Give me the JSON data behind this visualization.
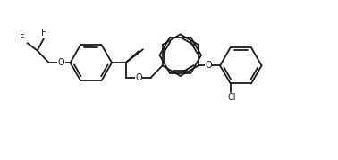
{
  "bg_color": "#ffffff",
  "line_color": "#1a1a1a",
  "line_width": 1.3,
  "font_size": 7.0,
  "figsize": [
    3.78,
    1.79
  ],
  "dpi": 100,
  "xlim": [
    0,
    10.5
  ],
  "ylim": [
    -0.5,
    5.0
  ]
}
